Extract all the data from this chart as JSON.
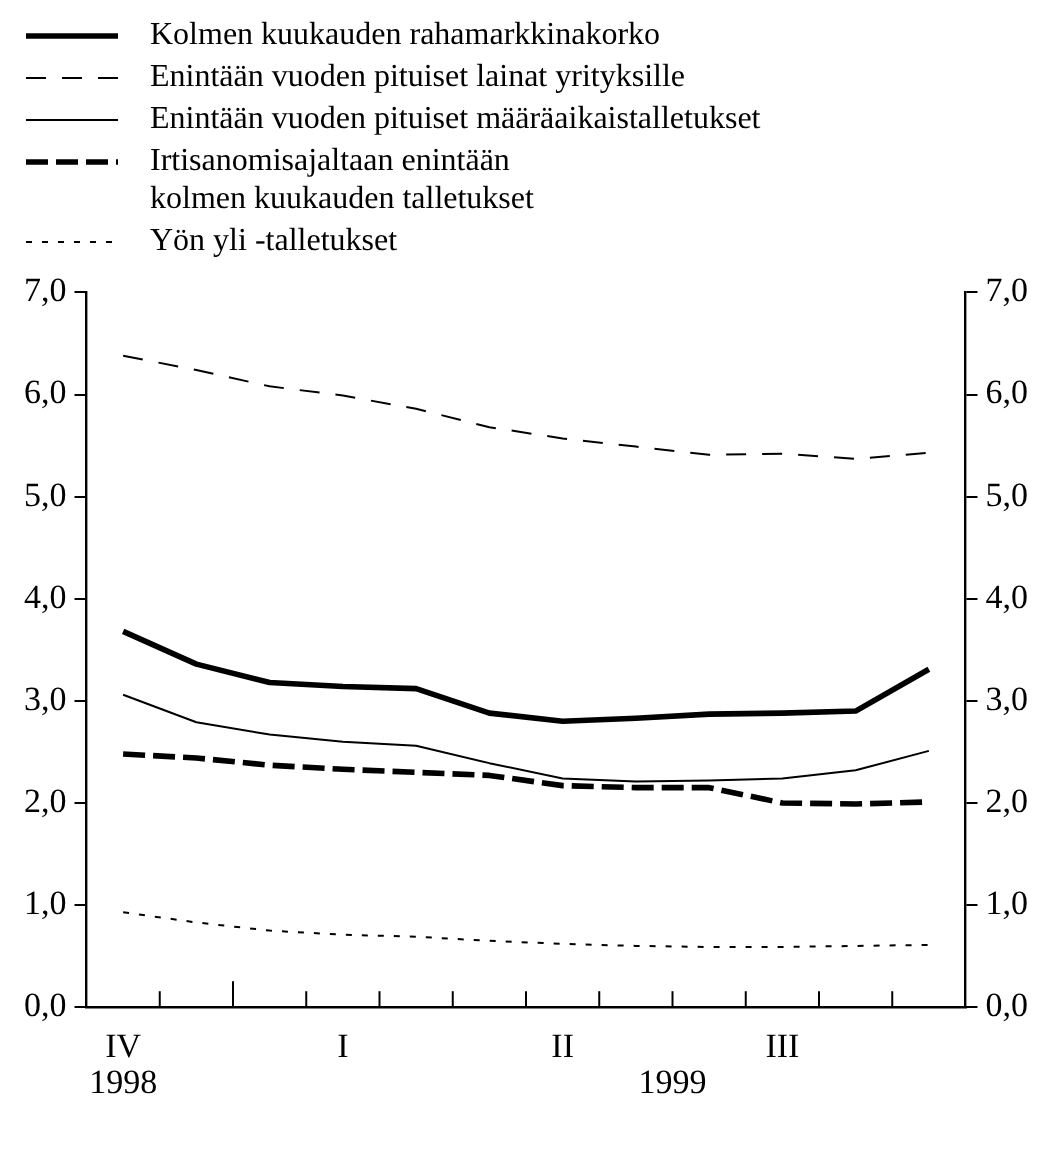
{
  "chart_data": {
    "type": "line",
    "categories": [
      "IV",
      null,
      null,
      "I",
      null,
      null,
      "II",
      null,
      null,
      "III",
      null,
      null
    ],
    "series": [
      {
        "name": "Kolmen kuukauden rahamarkkinakorko",
        "color": "#000000",
        "line_style": "solid",
        "values": [
          3.68,
          3.36,
          3.18,
          3.14,
          3.12,
          2.88,
          2.8,
          2.83,
          2.87,
          2.88,
          2.9,
          3.31
        ]
      },
      {
        "name": "Enintään vuoden pituiset lainat yrityksille",
        "color": "#000000",
        "line_style": "dashed",
        "values": [
          6.38,
          6.24,
          6.08,
          5.99,
          5.86,
          5.68,
          5.57,
          5.49,
          5.41,
          5.42,
          5.37,
          5.43
        ]
      },
      {
        "name": "Enintään vuoden pituiset määräaikaistalletukset",
        "color": "#000000",
        "line_style": "solid",
        "values": [
          3.06,
          2.79,
          2.67,
          2.6,
          2.56,
          2.39,
          2.24,
          2.21,
          2.22,
          2.24,
          2.32,
          2.51
        ]
      },
      {
        "name": "Irtisanomisajaltaan enintään\nkolmen kuukauden talletukset",
        "color": "#000000",
        "line_style": "dashed",
        "values": [
          2.48,
          2.44,
          2.37,
          2.33,
          2.3,
          2.27,
          2.17,
          2.15,
          2.15,
          2.0,
          1.99,
          2.01
        ]
      },
      {
        "name": "Yön yli -talletukset",
        "color": "#000000",
        "line_style": "dotted",
        "values": [
          0.93,
          0.83,
          0.75,
          0.71,
          0.69,
          0.65,
          0.62,
          0.6,
          0.59,
          0.59,
          0.6,
          0.61
        ]
      }
    ],
    "ylim": [
      0,
      7
    ],
    "yticks": [
      {
        "value": 0,
        "label": "0,0"
      },
      {
        "value": 1,
        "label": "1,0"
      },
      {
        "value": 2,
        "label": "2,0"
      },
      {
        "value": 3,
        "label": "3,0"
      },
      {
        "value": 4,
        "label": "4,0"
      },
      {
        "value": 5,
        "label": "5,0"
      },
      {
        "value": 6,
        "label": "6,0"
      },
      {
        "value": 7,
        "label": "7,0"
      }
    ],
    "y2lim": [
      0,
      7
    ],
    "y2ticks": [
      {
        "value": 0,
        "label": "0,0"
      },
      {
        "value": 1,
        "label": "1,0"
      },
      {
        "value": 2,
        "label": "2,0"
      },
      {
        "value": 3,
        "label": "3,0"
      },
      {
        "value": 4,
        "label": "4,0"
      },
      {
        "value": 5,
        "label": "5,0"
      },
      {
        "value": 6,
        "label": "6,0"
      },
      {
        "value": 7,
        "label": "7,0"
      }
    ],
    "annotations": [
      "1998",
      "1999"
    ],
    "grid": false,
    "legend": "top",
    "marker": "none"
  }
}
